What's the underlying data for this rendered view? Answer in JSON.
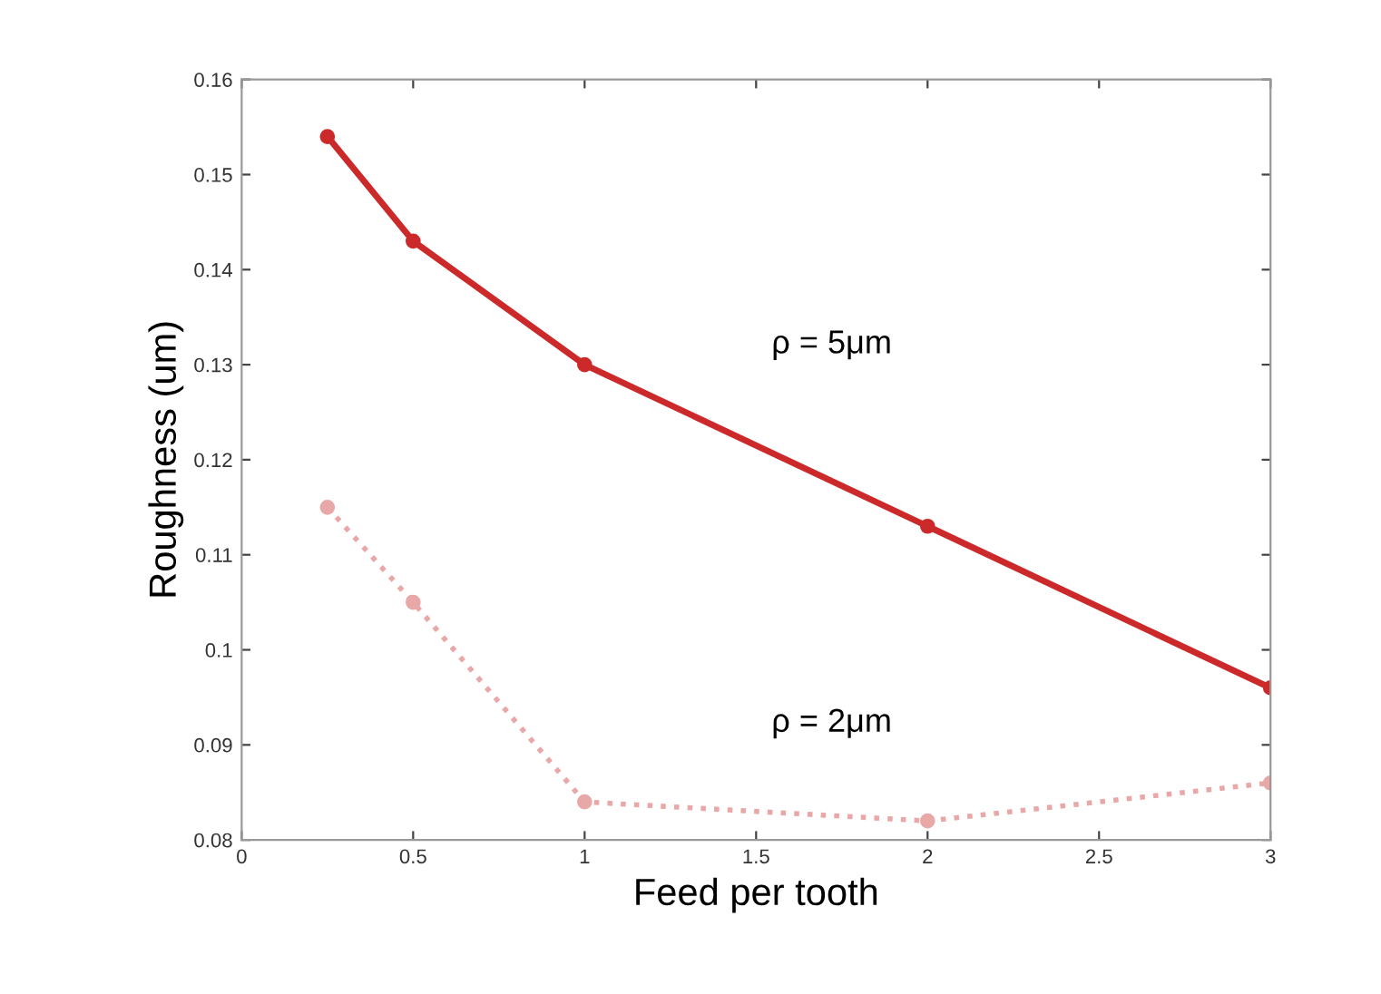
{
  "chart_data": {
    "type": "line",
    "xlabel": "Feed per tooth",
    "ylabel": "Roughness (um)",
    "xlim": [
      0,
      3
    ],
    "xticks": [
      0,
      0.5,
      1,
      1.5,
      2,
      2.5,
      3
    ],
    "ylim": [
      0.08,
      0.16
    ],
    "yticks": [
      0.08,
      0.09,
      {
        "value": 0.1,
        "label": "0.1"
      },
      0.11,
      0.12,
      0.13,
      0.14,
      0.15,
      0.16
    ],
    "grid": false,
    "marker": "circle",
    "x": [
      0.25,
      0.5,
      1,
      2,
      3
    ],
    "series": [
      {
        "name": "ρ = 5μm",
        "color": "#cc2a2a",
        "line_style": "solid",
        "values": [
          0.154,
          0.143,
          0.13,
          0.113,
          0.096
        ]
      },
      {
        "name": "ρ = 2μm",
        "color": "#e8a8a8",
        "line_style": "dotted",
        "values": [
          0.115,
          0.105,
          0.084,
          0.082,
          0.086
        ]
      }
    ]
  }
}
